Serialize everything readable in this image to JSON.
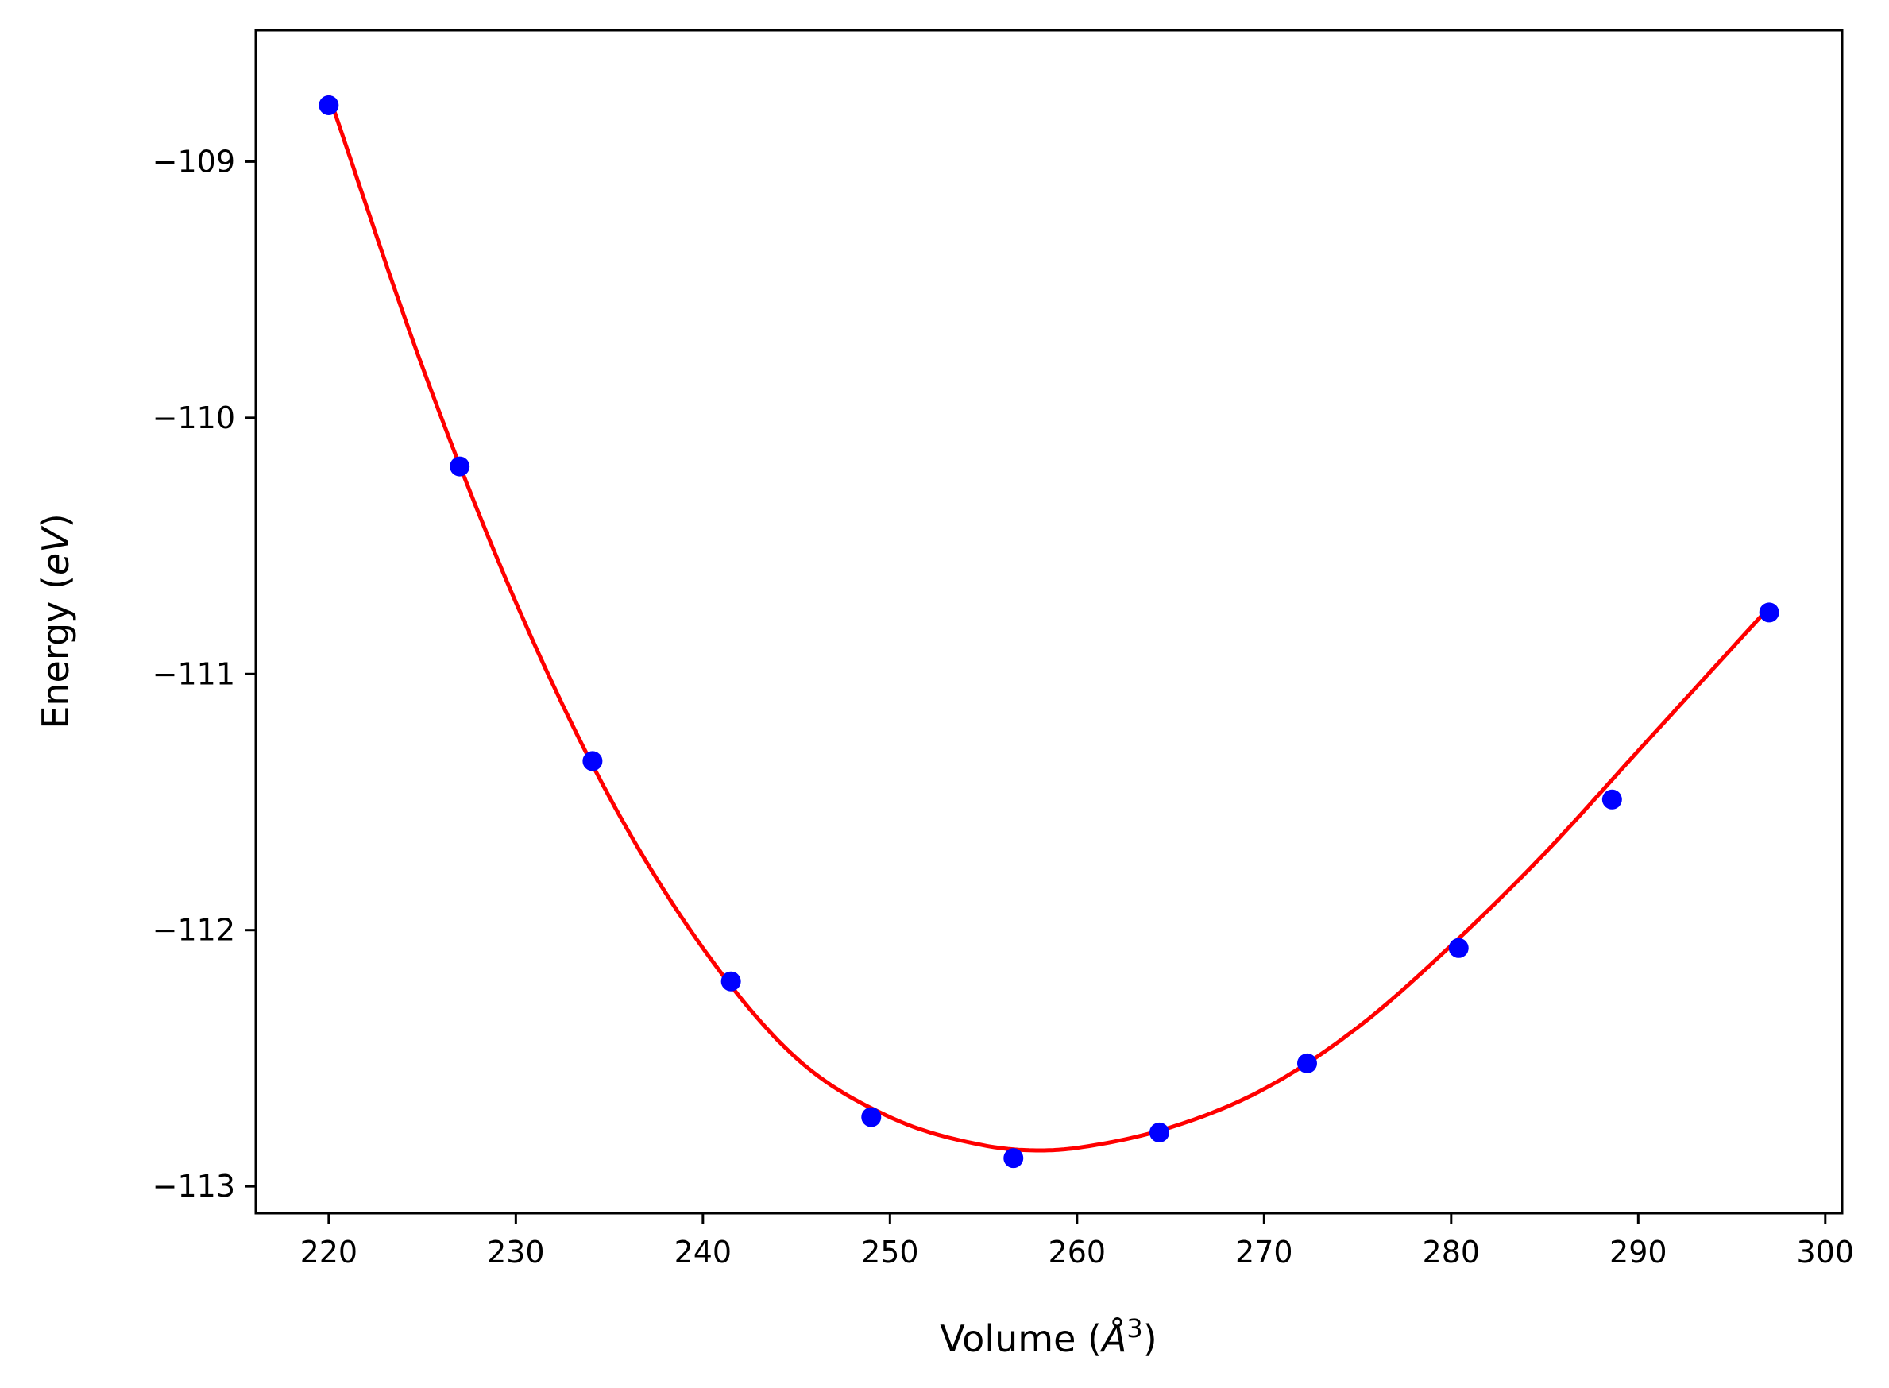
{
  "chart_data": {
    "type": "scatter",
    "title": "",
    "xlabel": {
      "prefix": "Volume (",
      "unit": "Å",
      "exponent": "3",
      "suffix": ")"
    },
    "ylabel": {
      "prefix": "Energy (",
      "unit": "eV",
      "suffix": ")"
    },
    "xlim": [
      216.1,
      300.9
    ],
    "ylim": [
      -113.105,
      -108.487
    ],
    "x_ticks": [
      220,
      230,
      240,
      250,
      260,
      270,
      280,
      290,
      300
    ],
    "y_ticks": [
      -109,
      -110,
      -111,
      -112,
      -113
    ],
    "x_tick_labels": [
      "220",
      "230",
      "240",
      "250",
      "260",
      "270",
      "280",
      "290",
      "300"
    ],
    "y_tick_labels": [
      "−109",
      "−110",
      "−111",
      "−112",
      "−113"
    ],
    "grid": false,
    "series": [
      {
        "kind": "points",
        "color": "#0000ff",
        "x": [
          220.0,
          227.0,
          234.1,
          241.5,
          249.0,
          256.6,
          264.4,
          272.3,
          280.4,
          288.6,
          297.0
        ],
        "y": [
          -108.78,
          -110.19,
          -111.34,
          -112.2,
          -112.73,
          -112.89,
          -112.79,
          -112.52,
          -112.07,
          -111.49,
          -110.76
        ]
      },
      {
        "kind": "fit-line",
        "color": "#ff0000",
        "x": [
          220,
          225,
          230,
          235,
          240,
          245,
          250,
          255,
          258,
          260,
          265,
          270,
          275,
          280,
          285,
          290,
          297
        ],
        "y": [
          -108.74,
          -109.8,
          -110.72,
          -111.48,
          -112.07,
          -112.5,
          -112.73,
          -112.84,
          -112.86,
          -112.85,
          -112.77,
          -112.62,
          -112.38,
          -112.06,
          -111.7,
          -111.3,
          -110.74
        ]
      }
    ]
  }
}
